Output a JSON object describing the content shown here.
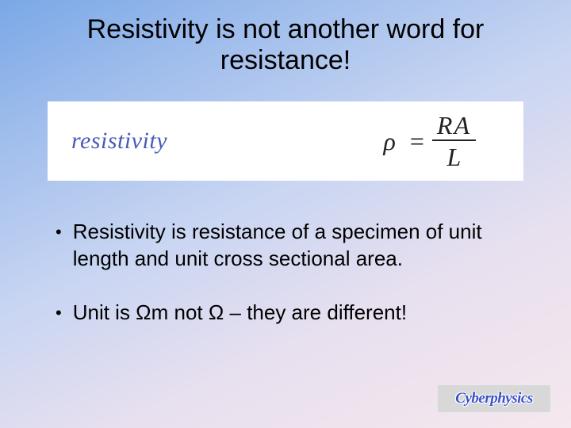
{
  "slide": {
    "background_gradient": [
      "#7aa8e6",
      "#9fbdec",
      "#c8d5f2",
      "#e8e0ef",
      "#f5e8ee"
    ],
    "title": "Resistivity is not another word for resistance!",
    "title_fontsize": 34,
    "title_color": "#000000",
    "formula": {
      "label": "resistivity",
      "label_color": "#4a5bb5",
      "label_fontsize": 30,
      "symbol_lhs": "ρ",
      "equals": "=",
      "numerator": "RA",
      "denominator": "L",
      "equation_fontsize": 32,
      "equation_color": "#222222",
      "box_bg": "#ffffff"
    },
    "bullets": [
      "Resistivity is resistance of a specimen of unit length and unit cross sectional area.",
      "Unit is Ωm not Ω – they are different!"
    ],
    "bullet_fontsize": 26,
    "logo": {
      "text": "Cyberphysics",
      "text_color": "#3a4fc9",
      "bg_color": "#d8d8d8"
    }
  }
}
